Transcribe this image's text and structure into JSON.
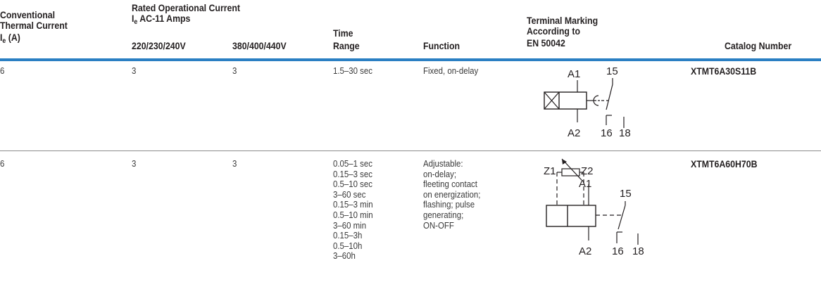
{
  "headers": {
    "thermal_line1": "Conventional",
    "thermal_line2": "Thermal Current",
    "thermal_sym": "I",
    "thermal_sub": "e",
    "thermal_unit": " (A)",
    "rated_line1": "Rated Operational Current",
    "rated_sym": "I",
    "rated_sub": "e",
    "rated_rest": " AC-11 Amps",
    "rated_v1": "220/230/240V",
    "rated_v2": "380/400/440V",
    "time_line1": "Time",
    "time_line2": "Range",
    "function": "Function",
    "terminal_line1": "Terminal Marking",
    "terminal_line2": "According to",
    "terminal_line3": "EN 50042",
    "catalog": "Catalog Number"
  },
  "rows": [
    {
      "thermal": "6",
      "current_240": "3",
      "current_440": "3",
      "time_ranges": [
        "1.5–30 sec"
      ],
      "function_lines": [
        "Fixed, on-delay"
      ],
      "terminals": {
        "a1": "A1",
        "a2": "A2",
        "t15": "15",
        "t16": "16",
        "t18": "18"
      },
      "catalog": "XTMT6A30S11B"
    },
    {
      "thermal": "6",
      "current_240": "3",
      "current_440": "3",
      "time_ranges": [
        "0.05–1 sec",
        "0.15–3 sec",
        "0.5–10 sec",
        "3–60 sec",
        "0.15–3 min",
        "0.5–10 min",
        "3–60 min",
        "0.15–3h",
        "0.5–10h",
        "3–60h"
      ],
      "function_lines": [
        "Adjustable:",
        "on-delay;",
        "fleeting contact",
        "on energization;",
        "flashing; pulse",
        "generating;",
        "ON-OFF"
      ],
      "terminals": {
        "z1": "Z1",
        "z2": "Z2",
        "a1": "A1",
        "a2": "A2",
        "t15": "15",
        "t16": "16",
        "t18": "18"
      },
      "catalog": "XTMT6A60H70B"
    }
  ]
}
